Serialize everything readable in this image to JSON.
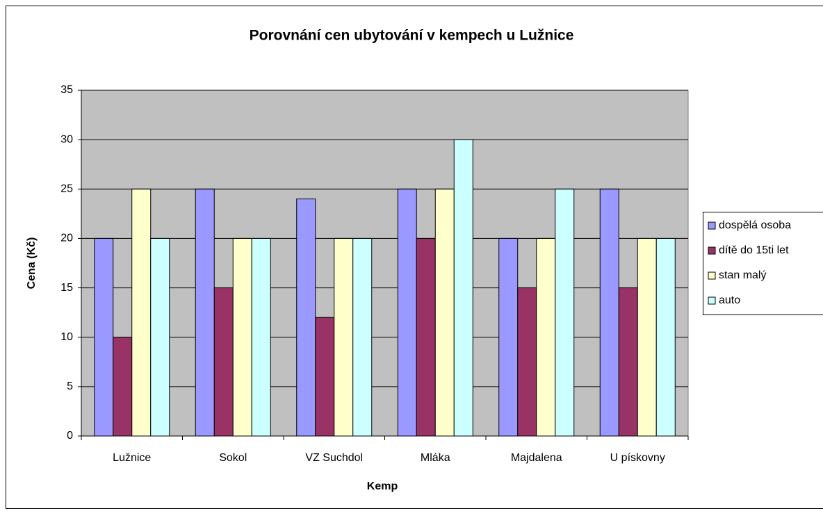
{
  "chart_data": {
    "type": "bar",
    "title": "Porovnání cen ubytování v kempech u Lužnice",
    "x_label": "Kemp",
    "y_label": "Cena (Kč)",
    "categories": [
      "Lužnice",
      "Sokol",
      "VZ Suchdol",
      "Mláka",
      "Majdalena",
      "U pískovny"
    ],
    "series": [
      {
        "name": "dospělá osoba",
        "color": "#9999ff",
        "values": [
          20,
          25,
          24,
          25,
          20,
          25
        ]
      },
      {
        "name": "dítě do 15ti let",
        "color": "#993366",
        "values": [
          10,
          15,
          12,
          20,
          15,
          15
        ]
      },
      {
        "name": "stan malý",
        "color": "#ffffcc",
        "values": [
          25,
          20,
          20,
          25,
          20,
          20
        ]
      },
      {
        "name": "auto",
        "color": "#ccffff",
        "values": [
          20,
          20,
          20,
          30,
          25,
          20
        ]
      }
    ],
    "ylim": [
      0,
      35
    ],
    "yticks": [
      0,
      5,
      10,
      15,
      20,
      25,
      30,
      35
    ],
    "grid": true,
    "legend": "right",
    "plot_background": "#c0c0c0"
  }
}
